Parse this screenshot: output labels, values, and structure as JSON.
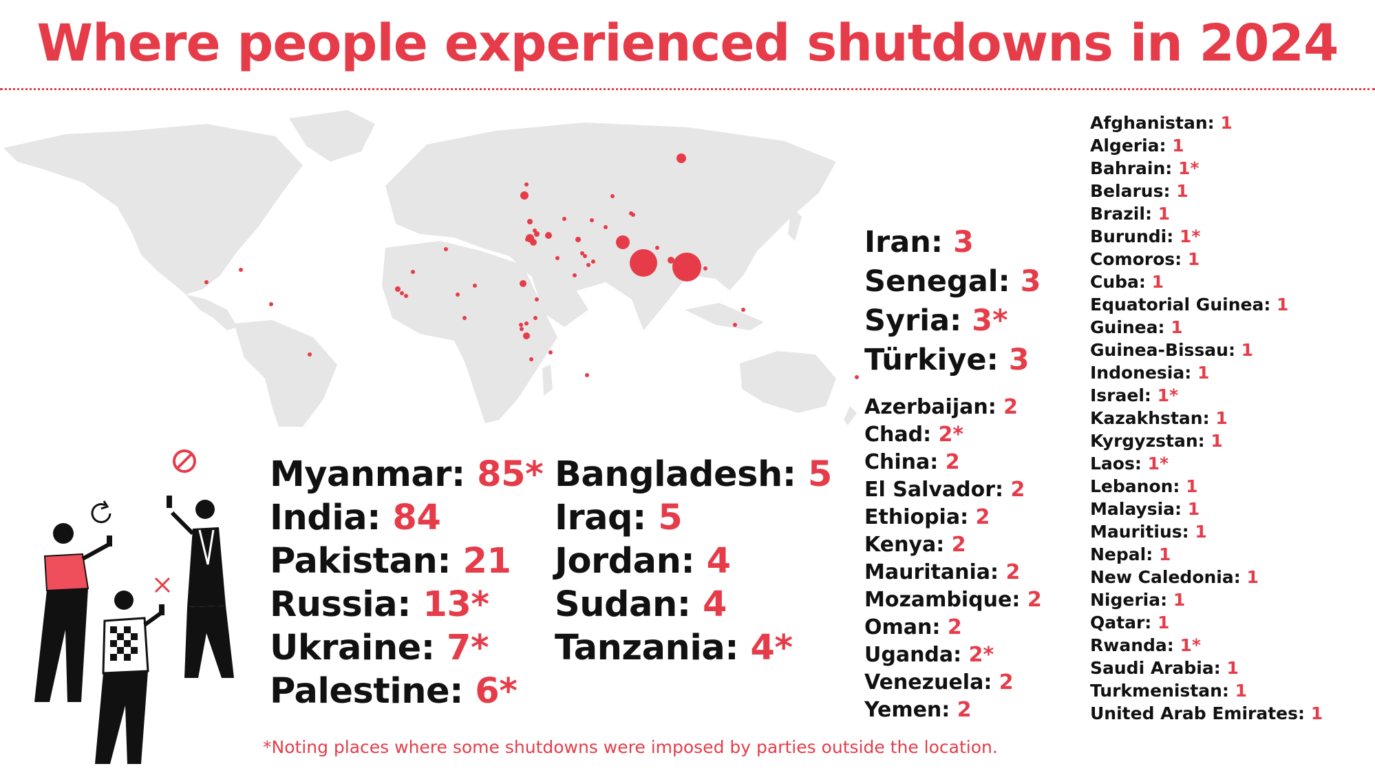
{
  "title": "Where people experienced shutdowns in 2024",
  "footnote": "*Noting places where some shutdowns were imposed by parties outside the location.",
  "colors": {
    "accent": "#e63c49",
    "text": "#111111",
    "land": "#e6e6e6"
  },
  "icons": [
    "prohibited-icon",
    "refresh-icon",
    "close-icon"
  ],
  "groups": [
    {
      "id": "group-top",
      "entries": [
        {
          "name": "Myanmar:",
          "count": "85*"
        },
        {
          "name": "India:",
          "count": "84"
        },
        {
          "name": "Pakistan:",
          "count": "21"
        },
        {
          "name": "Russia:",
          "count": "13*"
        },
        {
          "name": "Ukraine:",
          "count": "7*"
        },
        {
          "name": "Palestine:",
          "count": "6*"
        }
      ]
    },
    {
      "id": "group-second",
      "entries": [
        {
          "name": "Bangladesh:",
          "count": "5"
        },
        {
          "name": "Iraq:",
          "count": "5"
        },
        {
          "name": "Jordan:",
          "count": "4"
        },
        {
          "name": "Sudan:",
          "count": "4"
        },
        {
          "name": "Tanzania:",
          "count": "4*"
        }
      ]
    },
    {
      "id": "group-three",
      "entries": [
        {
          "name": "Iran:",
          "count": "3"
        },
        {
          "name": "Senegal:",
          "count": "3"
        },
        {
          "name": "Syria:",
          "count": "3*"
        },
        {
          "name": "Türkiye:",
          "count": "3"
        }
      ]
    },
    {
      "id": "group-two",
      "entries": [
        {
          "name": "Azerbaijan:",
          "count": "2"
        },
        {
          "name": "Chad:",
          "count": "2*"
        },
        {
          "name": "China:",
          "count": "2"
        },
        {
          "name": "El Salvador:",
          "count": "2"
        },
        {
          "name": "Ethiopia:",
          "count": "2"
        },
        {
          "name": "Kenya:",
          "count": "2"
        },
        {
          "name": "Mauritania:",
          "count": "2"
        },
        {
          "name": "Mozambique:",
          "count": "2"
        },
        {
          "name": "Oman:",
          "count": "2"
        },
        {
          "name": "Uganda:",
          "count": "2*"
        },
        {
          "name": "Venezuela:",
          "count": "2"
        },
        {
          "name": "Yemen:",
          "count": "2"
        }
      ]
    },
    {
      "id": "group-one",
      "entries": [
        {
          "name": "Afghanistan:",
          "count": "1"
        },
        {
          "name": "Algeria:",
          "count": "1"
        },
        {
          "name": "Bahrain:",
          "count": "1*"
        },
        {
          "name": "Belarus:",
          "count": "1"
        },
        {
          "name": "Brazil:",
          "count": "1"
        },
        {
          "name": "Burundi:",
          "count": "1*"
        },
        {
          "name": "Comoros:",
          "count": "1"
        },
        {
          "name": "Cuba:",
          "count": "1"
        },
        {
          "name": "Equatorial Guinea:",
          "count": "1"
        },
        {
          "name": "Guinea:",
          "count": "1"
        },
        {
          "name": "Guinea-Bissau:",
          "count": "1"
        },
        {
          "name": "Indonesia:",
          "count": "1"
        },
        {
          "name": "Israel:",
          "count": "1*"
        },
        {
          "name": "Kazakhstan:",
          "count": "1"
        },
        {
          "name": "Kyrgyzstan:",
          "count": "1"
        },
        {
          "name": "Laos:",
          "count": "1*"
        },
        {
          "name": "Lebanon:",
          "count": "1"
        },
        {
          "name": "Malaysia:",
          "count": "1"
        },
        {
          "name": "Mauritius:",
          "count": "1"
        },
        {
          "name": "Nepal:",
          "count": "1"
        },
        {
          "name": "New Caledonia:",
          "count": "1"
        },
        {
          "name": "Nigeria:",
          "count": "1"
        },
        {
          "name": "Qatar:",
          "count": "1"
        },
        {
          "name": "Rwanda:",
          "count": "1*"
        },
        {
          "name": "Saudi Arabia:",
          "count": "1"
        },
        {
          "name": "Turkmenistan:",
          "count": "1"
        },
        {
          "name": "United Arab Emirates:",
          "count": "1"
        }
      ]
    }
  ]
}
